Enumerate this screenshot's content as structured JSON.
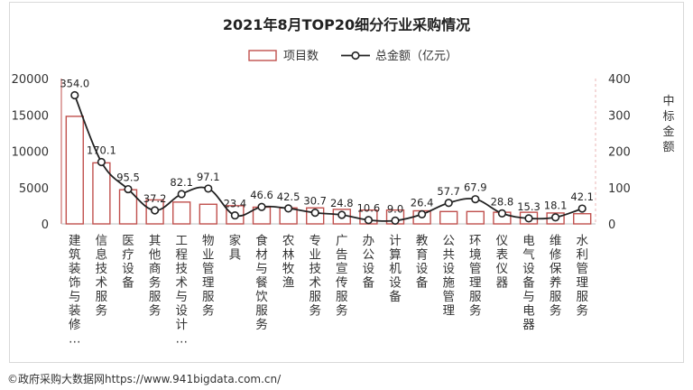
{
  "chart_data": {
    "type": "bar",
    "title": "2021年8月TOP20细分行业采购情况",
    "categories": [
      "建筑装饰与装修…",
      "信息技术服务",
      "医疗设备",
      "其他商务服务",
      "工程技术与设计…",
      "物业管理服务",
      "家具",
      "食材与餐饮服务",
      "农林牧渔",
      "专业技术服务",
      "广告宣传服务",
      "办公设备",
      "计算机设备",
      "教育设备",
      "公共设施管理",
      "环境管理服务",
      "仪表仪器",
      "电气设备与电器",
      "维修保养服务",
      "水利管理服务"
    ],
    "series": [
      {
        "name": "项目数",
        "axis": "left",
        "kind": "bar",
        "values": [
          14800,
          8400,
          4700,
          3300,
          3000,
          2700,
          2500,
          2300,
          2200,
          2200,
          2000,
          1900,
          1900,
          1800,
          1700,
          1700,
          1600,
          1600,
          1500,
          1400
        ]
      },
      {
        "name": "总金额（亿元）",
        "axis": "right",
        "kind": "line",
        "values": [
          354.0,
          170.1,
          95.5,
          37.2,
          82.1,
          97.1,
          23.4,
          46.6,
          42.5,
          30.7,
          24.8,
          10.6,
          9.0,
          26.4,
          57.7,
          67.9,
          28.8,
          15.3,
          18.1,
          42.1
        ]
      }
    ],
    "y_left": {
      "ticks": [
        "20000",
        "15000",
        "10000",
        "5000",
        "0"
      ],
      "ylim": [
        0,
        20000
      ]
    },
    "y_right": {
      "label": "中标金额",
      "ticks": [
        "400",
        "300",
        "200",
        "100",
        "0"
      ],
      "ylim": [
        0,
        400
      ]
    },
    "legend": {
      "position": "top-center"
    },
    "grid": false,
    "colors": {
      "bar_stroke": "#c0504d",
      "bar_fill": "#ffffff",
      "line": "#222222",
      "axis_left": "#c0504d",
      "axis_right": "#e8b4b4"
    }
  },
  "footer": "©政府采购大数据网https://www.941bigdata.com.cn/"
}
